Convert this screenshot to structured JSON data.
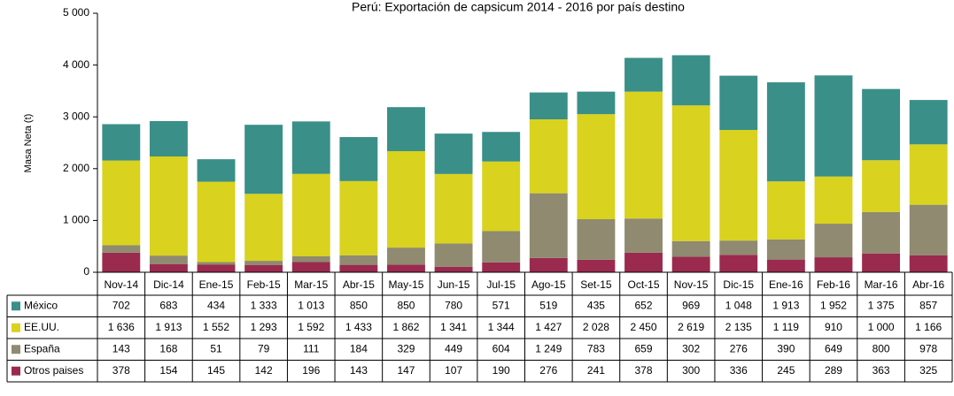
{
  "chart_data": {
    "type": "bar",
    "stacked": true,
    "title": "Perú: Exportación de capsicum 2014 - 2016  por país destino",
    "y_label": "Masa Neta (t)",
    "categories": [
      "Nov-14",
      "Dic-14",
      "Ene-15",
      "Feb-15",
      "Mar-15",
      "Abr-15",
      "May-15",
      "Jun-15",
      "Jul-15",
      "Ago-15",
      "Set-15",
      "Oct-15",
      "Nov-15",
      "Dic-15",
      "Ene-16",
      "Feb-16",
      "Mar-16",
      "Abr-16"
    ],
    "series": [
      {
        "name": "México",
        "color": "#3a8f88",
        "values": [
          702,
          683,
          434,
          1333,
          1013,
          850,
          850,
          780,
          571,
          519,
          435,
          652,
          969,
          1048,
          1913,
          1952,
          1375,
          857
        ],
        "value_labels": [
          "702",
          "683",
          "434",
          "1 333",
          "1 013",
          "850",
          "850",
          "780",
          "571",
          "519",
          "435",
          "652",
          "969",
          "1 048",
          "1 913",
          "1 952",
          "1 375",
          "857"
        ]
      },
      {
        "name": "EE.UU.",
        "color": "#d9d21e",
        "values": [
          1636,
          1913,
          1552,
          1293,
          1592,
          1433,
          1862,
          1341,
          1344,
          1427,
          2028,
          2450,
          2619,
          2135,
          1119,
          910,
          1000,
          1166
        ],
        "value_labels": [
          "1 636",
          "1 913",
          "1 552",
          "1 293",
          "1 592",
          "1 433",
          "1 862",
          "1 341",
          "1 344",
          "1 427",
          "2 028",
          "2 450",
          "2 619",
          "2 135",
          "1 119",
          "910",
          "1 000",
          "1 166"
        ]
      },
      {
        "name": "España",
        "color": "#8f8a70",
        "values": [
          143,
          168,
          51,
          79,
          111,
          184,
          329,
          449,
          604,
          1249,
          783,
          659,
          302,
          276,
          390,
          649,
          800,
          978
        ],
        "value_labels": [
          "143",
          "168",
          "51",
          "79",
          "111",
          "184",
          "329",
          "449",
          "604",
          "1 249",
          "783",
          "659",
          "302",
          "276",
          "390",
          "649",
          "800",
          "978"
        ]
      },
      {
        "name": "Otros paises",
        "color": "#9b2a4f",
        "values": [
          378,
          154,
          145,
          142,
          196,
          143,
          147,
          107,
          190,
          276,
          241,
          378,
          300,
          336,
          245,
          289,
          363,
          325
        ],
        "value_labels": [
          "378",
          "154",
          "145",
          "142",
          "196",
          "143",
          "147",
          "107",
          "190",
          "276",
          "241",
          "378",
          "300",
          "336",
          "245",
          "289",
          "363",
          "325"
        ]
      }
    ],
    "ylim": [
      0,
      5000
    ],
    "yticks": [
      0,
      {
        "value": 1000,
        "label": "1 000"
      },
      {
        "value": 2000,
        "label": "2 000"
      },
      {
        "value": 3000,
        "label": "3 000"
      },
      {
        "value": 4000,
        "label": "4 000"
      },
      {
        "value": 5000,
        "label": "5 000"
      }
    ]
  }
}
